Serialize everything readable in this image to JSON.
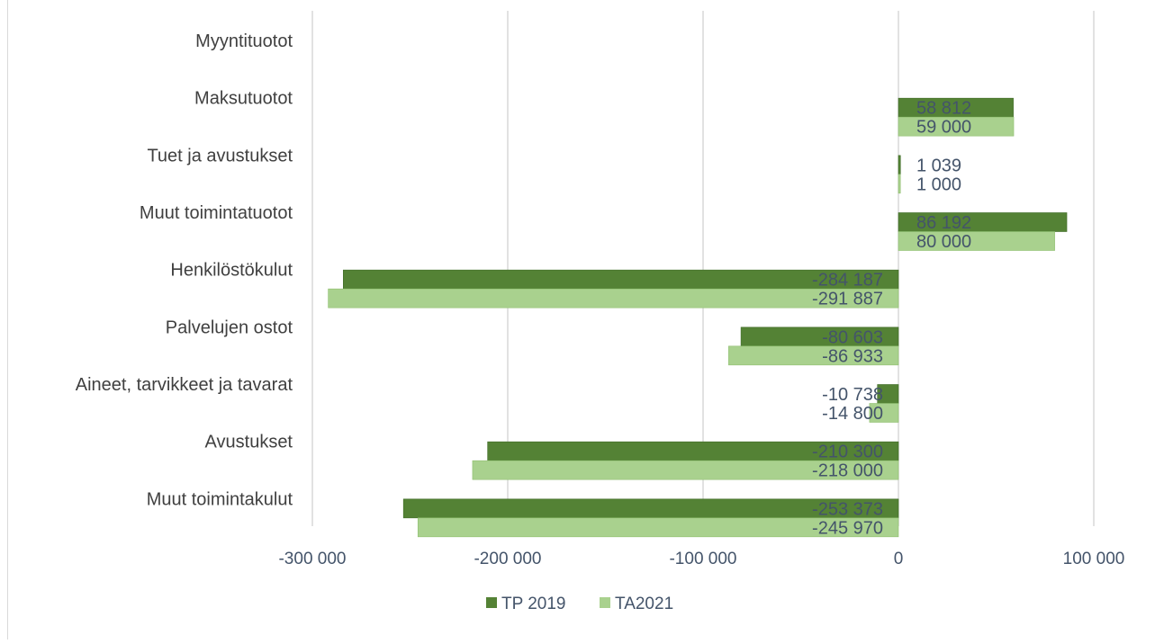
{
  "chart_data": {
    "type": "bar",
    "orientation": "horizontal",
    "categories": [
      "Myyntituotot",
      "Maksutuotot",
      "Tuet ja avustukset",
      "Muut toimintatuotot",
      "Henkilöstökulut",
      "Palvelujen ostot",
      "Aineet, tarvikkeet ja tavarat",
      "Avustukset",
      "Muut toimintakulut"
    ],
    "series": [
      {
        "name": "TP 2019",
        "color": "#548235",
        "values": [
          null,
          58812,
          1039,
          86192,
          -284187,
          -80603,
          -10738,
          -210300,
          -253373
        ],
        "labels": [
          "",
          "58 812",
          "1 039",
          "86 192",
          "-284 187",
          "-80 603",
          "-10 738",
          "-210 300",
          "-253 373"
        ]
      },
      {
        "name": "TA2021",
        "color": "#a9d18e",
        "values": [
          null,
          59000,
          1000,
          80000,
          -291887,
          -86933,
          -14800,
          -218000,
          -245970
        ],
        "labels": [
          "",
          "59 000",
          "1 000",
          "80 000",
          "-291 887",
          "-86 933",
          "-14 800",
          "-218 000",
          "-245 970"
        ]
      }
    ],
    "xlim": [
      -300000,
      100000
    ],
    "x_ticks": [
      -300000,
      -200000,
      -100000,
      0,
      100000
    ],
    "x_tick_labels": [
      "-300 000",
      "-200 000",
      "-100 000",
      "0",
      "100 000"
    ],
    "grid": true,
    "legend": "bottom",
    "title": "",
    "xlabel": "",
    "ylabel": ""
  },
  "colors": {
    "grid": "#d9d9d9",
    "text": "#44546a",
    "category_text": "#404040"
  }
}
